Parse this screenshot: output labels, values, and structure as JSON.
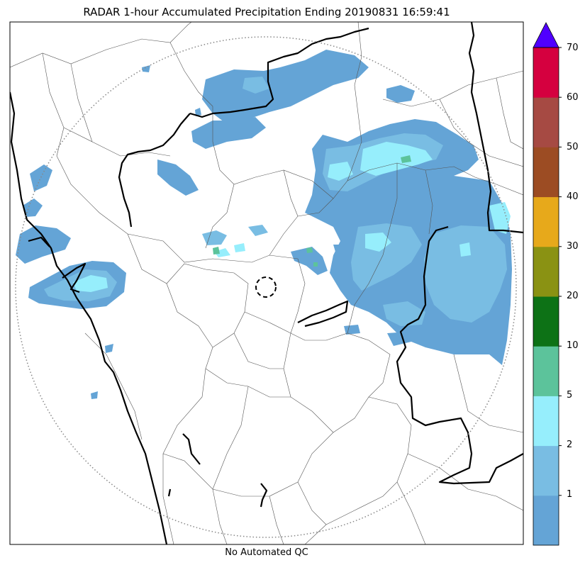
{
  "title": "RADAR 1-hour Accumulated Precipitation Ending 20190831 16:59:41",
  "footer_note": "No Automated QC",
  "colorbar": {
    "bins": [
      {
        "label": "",
        "color": "#64a4d6"
      },
      {
        "label": "1",
        "color": "#79bde3"
      },
      {
        "label": "2",
        "color": "#96eefc"
      },
      {
        "label": "5",
        "color": "#5cc39b"
      },
      {
        "label": "10",
        "color": "#0d7216"
      },
      {
        "label": "20",
        "color": "#8a9213"
      },
      {
        "label": "30",
        "color": "#e7a91b"
      },
      {
        "label": "40",
        "color": "#9c4c23"
      },
      {
        "label": "50",
        "color": "#a64a43"
      },
      {
        "label": "60",
        "color": "#d5003f"
      }
    ],
    "top_label": "70",
    "extend_color": "#5000ff"
  },
  "map": {
    "border_color": "#000000",
    "district_color": "#555555",
    "range_ring": "dotted",
    "radar_site_marker": "dashed-circle"
  }
}
